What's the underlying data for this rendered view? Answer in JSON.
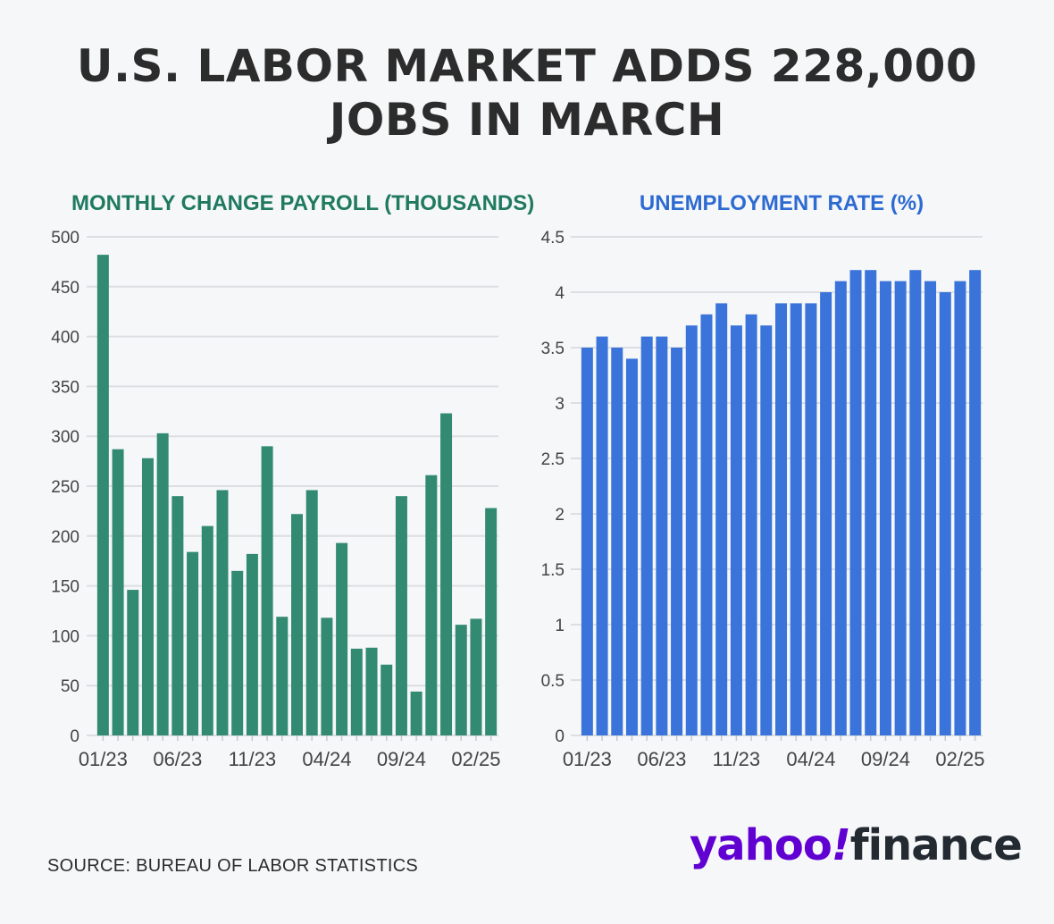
{
  "headline": {
    "line1": "U.S. LABOR MARKET ADDS 228,000",
    "line2": "JOBS IN MARCH"
  },
  "source": "SOURCE: BUREAU OF LABOR STATISTICS",
  "logo": {
    "yahoo": "yahoo",
    "bang": "!",
    "finance": "finance"
  },
  "colors": {
    "payroll": "#338a73",
    "payroll_title": "#1f7a5e",
    "unemployment": "#3a74da",
    "unemployment_title": "#2d6bd2",
    "gridline": "#dcdee2",
    "text": "#2c2c2c"
  },
  "chart_data": [
    {
      "type": "bar",
      "title": "MONTHLY CHANGE PAYROLL (THOUSANDS)",
      "categories": [
        "01/23",
        "02/23",
        "03/23",
        "04/23",
        "05/23",
        "06/23",
        "07/23",
        "08/23",
        "09/23",
        "10/23",
        "11/23",
        "12/23",
        "01/24",
        "02/24",
        "03/24",
        "04/24",
        "05/24",
        "06/24",
        "07/24",
        "08/24",
        "09/24",
        "10/24",
        "11/24",
        "12/24",
        "01/25",
        "02/25",
        "03/25"
      ],
      "values": [
        482,
        287,
        146,
        278,
        303,
        240,
        184,
        210,
        246,
        165,
        182,
        290,
        119,
        222,
        246,
        118,
        193,
        87,
        88,
        71,
        240,
        44,
        261,
        323,
        111,
        117,
        228
      ],
      "tick_labels": [
        "01/23",
        "06/23",
        "11/23",
        "04/24",
        "09/24",
        "02/25"
      ],
      "tick_indices": [
        0,
        5,
        10,
        15,
        20,
        25
      ],
      "ylim": [
        0,
        500
      ],
      "yticks": [
        0,
        50,
        100,
        150,
        200,
        250,
        300,
        350,
        400,
        450,
        500
      ],
      "grid": true
    },
    {
      "type": "bar",
      "title": "UNEMPLOYMENT RATE (%)",
      "categories": [
        "01/23",
        "02/23",
        "03/23",
        "04/23",
        "05/23",
        "06/23",
        "07/23",
        "08/23",
        "09/23",
        "10/23",
        "11/23",
        "12/23",
        "01/24",
        "02/24",
        "03/24",
        "04/24",
        "05/24",
        "06/24",
        "07/24",
        "08/24",
        "09/24",
        "10/24",
        "11/24",
        "12/24",
        "01/25",
        "02/25",
        "03/25"
      ],
      "values": [
        3.5,
        3.6,
        3.5,
        3.4,
        3.6,
        3.6,
        3.5,
        3.7,
        3.8,
        3.9,
        3.7,
        3.8,
        3.7,
        3.9,
        3.9,
        3.9,
        4.0,
        4.1,
        4.2,
        4.2,
        4.1,
        4.1,
        4.2,
        4.1,
        4.0,
        4.1,
        4.2
      ],
      "tick_labels": [
        "01/23",
        "06/23",
        "11/23",
        "04/24",
        "09/24",
        "02/25"
      ],
      "tick_indices": [
        0,
        5,
        10,
        15,
        20,
        25
      ],
      "ylim": [
        0,
        4.5
      ],
      "yticks": [
        0,
        0.5,
        1,
        1.5,
        2,
        2.5,
        3,
        3.5,
        4,
        4.5
      ],
      "grid": true
    }
  ]
}
